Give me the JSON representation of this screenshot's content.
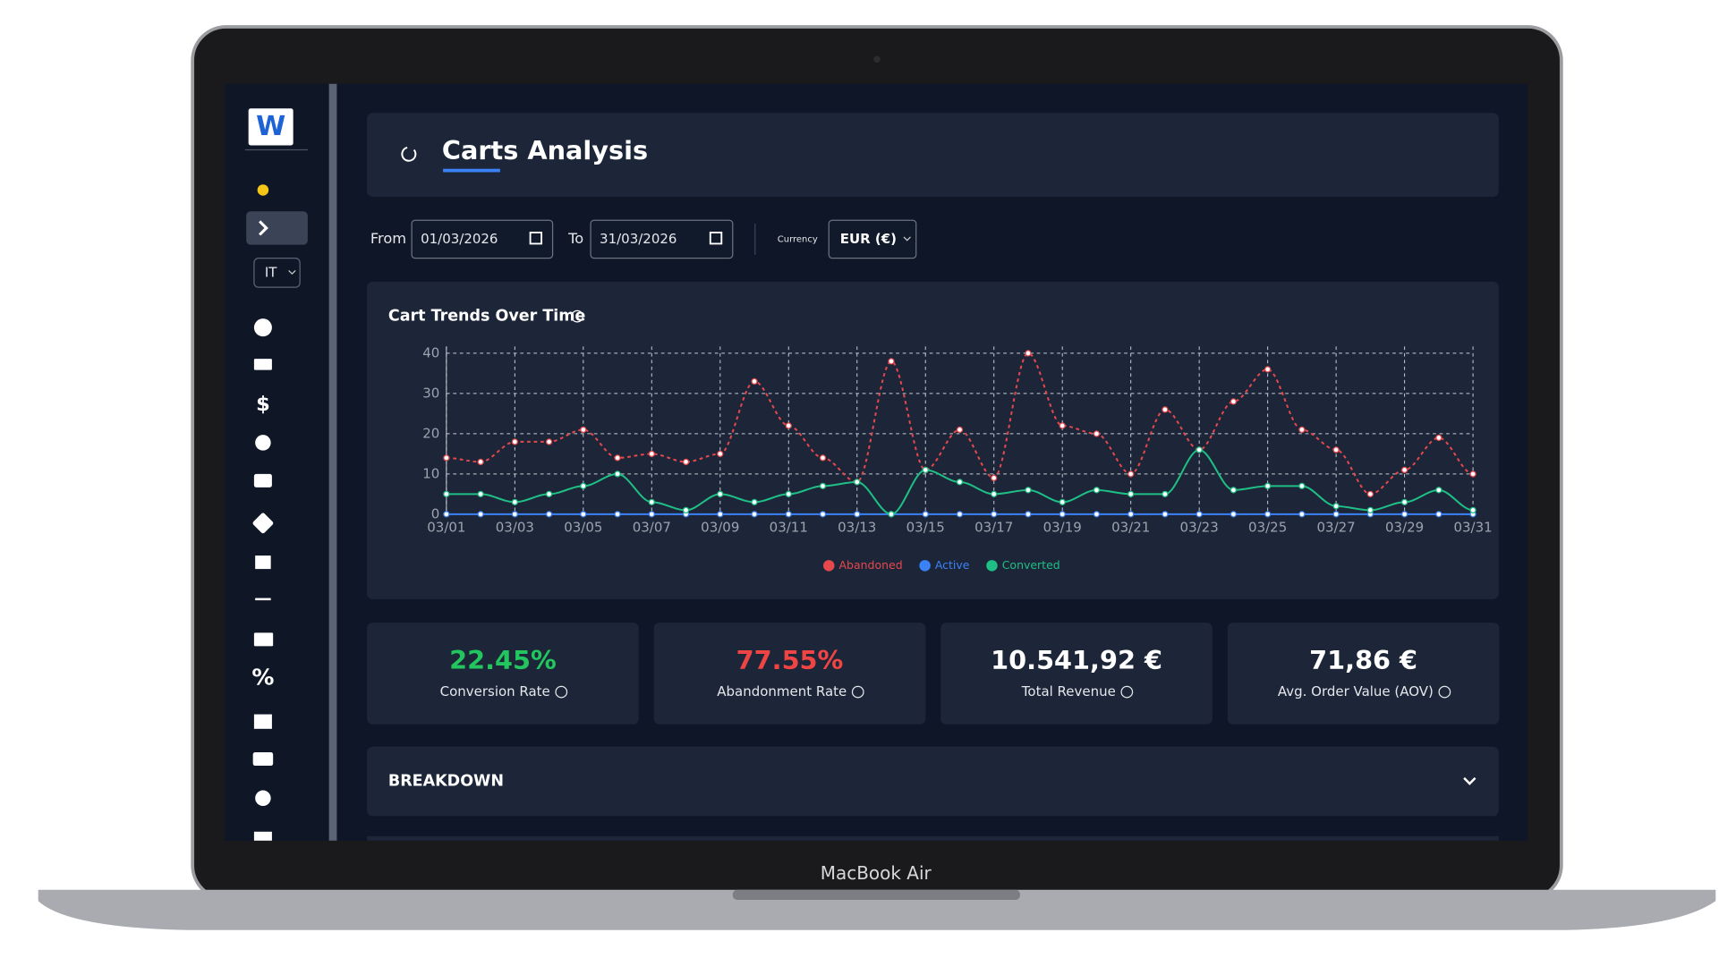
{
  "sidebar": {
    "logo": "W",
    "language": "IT"
  },
  "header": {
    "title": "Carts Analysis"
  },
  "filters": {
    "from_label": "From",
    "from_date": "01/03/2026",
    "to_label": "To",
    "to_date": "31/03/2026",
    "currency_label": "Currency",
    "currency": "EUR (€)"
  },
  "chart_data": {
    "type": "line",
    "title": "Cart Trends Over Time",
    "categories": [
      "03/01",
      null,
      "03/03",
      null,
      "03/05",
      null,
      "03/07",
      null,
      "03/09",
      null,
      "03/11",
      null,
      "03/13",
      null,
      "03/15",
      null,
      "03/17",
      null,
      "03/19",
      null,
      "03/21",
      null,
      "03/23",
      null,
      "03/25",
      null,
      "03/27",
      null,
      "03/29",
      null,
      "03/31"
    ],
    "series": [
      {
        "name": "Abandoned",
        "color": "#e5484d",
        "dashed": true,
        "values": [
          14,
          13,
          18,
          18,
          21,
          14,
          15,
          13,
          15,
          33,
          22,
          14,
          8,
          38,
          11,
          21,
          9,
          40,
          22,
          20,
          10,
          26,
          16,
          28,
          36,
          21,
          16,
          5,
          11,
          19,
          10
        ]
      },
      {
        "name": "Active",
        "color": "#3b82f6",
        "dashed": false,
        "values": [
          0,
          0,
          0,
          0,
          0,
          0,
          0,
          0,
          0,
          0,
          0,
          0,
          0,
          0,
          0,
          0,
          0,
          0,
          0,
          0,
          0,
          0,
          0,
          0,
          0,
          0,
          0,
          0,
          0,
          0,
          0
        ]
      },
      {
        "name": "Converted",
        "color": "#1fbf85",
        "dashed": false,
        "values": [
          5,
          5,
          3,
          5,
          7,
          10,
          3,
          1,
          5,
          3,
          5,
          7,
          8,
          0,
          11,
          8,
          5,
          6,
          3,
          6,
          5,
          5,
          16,
          6,
          7,
          7,
          2,
          1,
          3,
          6,
          1
        ]
      }
    ],
    "ylim": [
      0,
      40
    ],
    "yticks": [
      0,
      10,
      20,
      30,
      40
    ],
    "grid": true
  },
  "kpis": [
    {
      "value": "22.45%",
      "label": "Conversion Rate",
      "color": "#22c55e"
    },
    {
      "value": "77.55%",
      "label": "Abandonment Rate",
      "color": "#ef4444"
    },
    {
      "value": "10.541,92 €",
      "label": "Total Revenue",
      "color": "#ffffff"
    },
    {
      "value": "71,86 €",
      "label": "Avg. Order Value (AOV)",
      "color": "#ffffff"
    }
  ],
  "breakdown": {
    "title": "BREAKDOWN"
  },
  "device": {
    "label": "MacBook Air"
  }
}
